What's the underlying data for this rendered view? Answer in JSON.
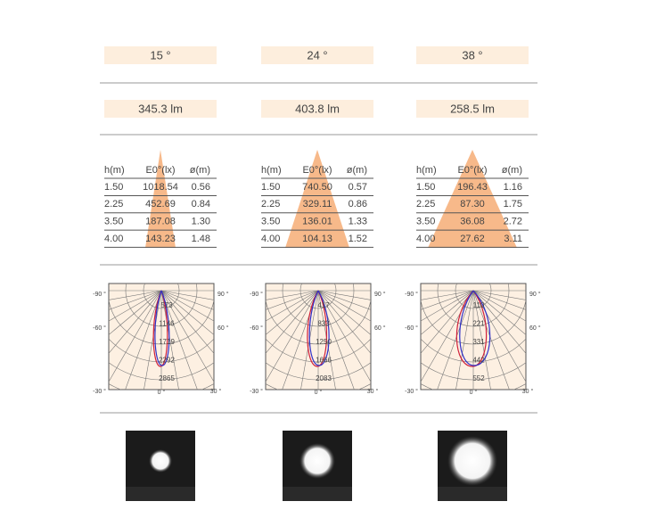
{
  "columns": [
    {
      "beam": "15 °",
      "flux": "345.3 lm",
      "rows": [
        [
          "1.50",
          "1018.54",
          "0.56"
        ],
        [
          "2.25",
          "452.69",
          "0.84"
        ],
        [
          "3.50",
          "187.08",
          "1.30"
        ],
        [
          "4.00",
          "143.23",
          "1.48"
        ]
      ],
      "polar_values": [
        "573",
        "1146",
        "1719",
        "2292",
        "2865"
      ]
    },
    {
      "beam": "24 °",
      "flux": "403.8 lm",
      "rows": [
        [
          "1.50",
          "740.50",
          "0.57"
        ],
        [
          "2.25",
          "329.11",
          "0.86"
        ],
        [
          "3.50",
          "136.01",
          "1.33"
        ],
        [
          "4.00",
          "104.13",
          "1.52"
        ]
      ],
      "polar_values": [
        "417",
        "833",
        "1250",
        "1666",
        "2083"
      ]
    },
    {
      "beam": "38 °",
      "flux": "258.5 lm",
      "rows": [
        [
          "1.50",
          "196.43",
          "1.16"
        ],
        [
          "2.25",
          "87.30",
          "1.75"
        ],
        [
          "3.50",
          "36.08",
          "2.72"
        ],
        [
          "4.00",
          "27.62",
          "3.11"
        ]
      ],
      "polar_values": [
        "110",
        "221",
        "331",
        "442",
        "552"
      ]
    }
  ],
  "table_header": [
    "h(m)",
    "E0°(lx)",
    "ø(m)"
  ],
  "polar_angles": [
    "-90 °",
    "90 °",
    "-60 °",
    "60 °",
    "-30 °",
    "0 °",
    "30 °"
  ]
}
